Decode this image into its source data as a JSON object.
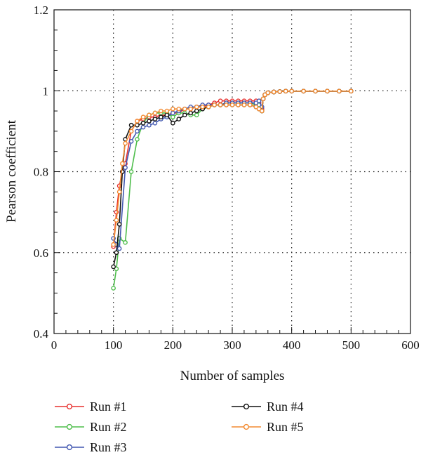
{
  "chart_data": {
    "type": "line",
    "title": "",
    "xlabel": "Number of samples",
    "ylabel": "Pearson coefficient",
    "xlim": [
      0,
      600
    ],
    "ylim": [
      0.4,
      1.2
    ],
    "xticks": [
      0,
      100,
      200,
      300,
      400,
      500,
      600
    ],
    "yticks": [
      0.4,
      0.6,
      0.8,
      1,
      1.2
    ],
    "xtick_labels": [
      "0",
      "100",
      "200",
      "300",
      "400",
      "500",
      "600"
    ],
    "ytick_labels": [
      "0.4",
      "0.6",
      "0.8",
      "1",
      "1.2"
    ],
    "grid": "dotted, major ticks only",
    "legend_position": "bottom",
    "series": [
      {
        "name": "Run #1",
        "color": "#e8312f",
        "x": [
          100,
          105,
          110,
          115,
          120,
          130,
          140,
          150,
          160,
          170,
          180,
          190,
          200,
          210,
          220,
          230,
          240,
          250,
          260,
          270,
          280,
          290,
          300,
          310,
          320,
          330,
          340,
          345,
          350,
          352,
          355,
          360,
          370,
          380,
          390,
          400,
          420,
          440,
          460,
          480,
          500
        ],
        "y": [
          0.615,
          0.7,
          0.765,
          0.8,
          0.82,
          0.9,
          0.925,
          0.93,
          0.935,
          0.935,
          0.94,
          0.94,
          0.945,
          0.945,
          0.955,
          0.955,
          0.96,
          0.96,
          0.965,
          0.97,
          0.975,
          0.975,
          0.975,
          0.975,
          0.975,
          0.975,
          0.975,
          0.97,
          0.955,
          0.98,
          0.99,
          0.995,
          0.997,
          0.998,
          0.999,
          0.999,
          0.999,
          0.999,
          0.999,
          0.999,
          0.999
        ]
      },
      {
        "name": "Run #2",
        "color": "#4dbd4a",
        "x": [
          100,
          105,
          110,
          120,
          130,
          140,
          150,
          160,
          170,
          180,
          190,
          200,
          210,
          220,
          230,
          240,
          250,
          260,
          270,
          280,
          290,
          300,
          310,
          320,
          330,
          340,
          345,
          350,
          352,
          355,
          360,
          370,
          380,
          390,
          400,
          420,
          440,
          460,
          480,
          500
        ],
        "y": [
          0.512,
          0.56,
          0.635,
          0.625,
          0.8,
          0.88,
          0.92,
          0.94,
          0.945,
          0.945,
          0.945,
          0.935,
          0.945,
          0.945,
          0.94,
          0.94,
          0.955,
          0.96,
          0.965,
          0.965,
          0.97,
          0.97,
          0.97,
          0.97,
          0.97,
          0.965,
          0.965,
          0.95,
          0.98,
          0.99,
          0.995,
          0.997,
          0.998,
          0.999,
          0.999,
          0.999,
          0.999,
          0.999,
          0.999,
          0.999
        ]
      },
      {
        "name": "Run #3",
        "color": "#4157b0",
        "x": [
          100,
          105,
          110,
          120,
          130,
          140,
          150,
          160,
          170,
          180,
          190,
          200,
          210,
          220,
          230,
          240,
          250,
          260,
          270,
          280,
          290,
          300,
          310,
          320,
          330,
          340,
          345,
          350,
          352,
          355,
          360,
          370,
          380,
          390,
          400,
          420,
          440,
          460,
          480,
          500
        ],
        "y": [
          0.635,
          0.62,
          0.61,
          0.81,
          0.875,
          0.9,
          0.91,
          0.915,
          0.92,
          0.93,
          0.935,
          0.945,
          0.95,
          0.955,
          0.96,
          0.96,
          0.965,
          0.965,
          0.965,
          0.965,
          0.97,
          0.97,
          0.97,
          0.97,
          0.97,
          0.97,
          0.975,
          0.96,
          0.98,
          0.99,
          0.995,
          0.997,
          0.998,
          0.999,
          0.999,
          0.999,
          0.999,
          0.999,
          0.999,
          0.999
        ]
      },
      {
        "name": "Run #4",
        "color": "#111111",
        "x": [
          100,
          105,
          110,
          115,
          120,
          130,
          140,
          150,
          160,
          170,
          180,
          190,
          200,
          210,
          220,
          230,
          240,
          250,
          260,
          270,
          280,
          290,
          300,
          310,
          320,
          330,
          340,
          345,
          350,
          352,
          355,
          360,
          370,
          380,
          390,
          400,
          420,
          440,
          460,
          480,
          500
        ],
        "y": [
          0.565,
          0.6,
          0.67,
          0.8,
          0.88,
          0.915,
          0.915,
          0.92,
          0.925,
          0.93,
          0.935,
          0.94,
          0.92,
          0.93,
          0.94,
          0.945,
          0.95,
          0.955,
          0.96,
          0.965,
          0.965,
          0.965,
          0.965,
          0.965,
          0.965,
          0.965,
          0.96,
          0.955,
          0.95,
          0.98,
          0.99,
          0.995,
          0.997,
          0.998,
          0.999,
          0.999,
          0.999,
          0.999,
          0.999,
          0.999,
          0.999
        ]
      },
      {
        "name": "Run #5",
        "color": "#f28a30",
        "x": [
          100,
          105,
          110,
          115,
          120,
          130,
          140,
          150,
          160,
          170,
          180,
          190,
          200,
          210,
          220,
          230,
          240,
          250,
          260,
          270,
          280,
          290,
          300,
          310,
          320,
          330,
          340,
          345,
          350,
          352,
          355,
          360,
          370,
          380,
          390,
          400,
          420,
          440,
          460,
          480,
          500
        ],
        "y": [
          0.62,
          0.68,
          0.75,
          0.82,
          0.87,
          0.9,
          0.925,
          0.935,
          0.94,
          0.945,
          0.95,
          0.95,
          0.955,
          0.955,
          0.955,
          0.955,
          0.96,
          0.96,
          0.96,
          0.965,
          0.965,
          0.965,
          0.965,
          0.965,
          0.965,
          0.965,
          0.96,
          0.955,
          0.95,
          0.98,
          0.99,
          0.995,
          0.997,
          0.998,
          0.999,
          0.999,
          0.999,
          0.999,
          0.999,
          0.999,
          0.999
        ]
      }
    ]
  }
}
